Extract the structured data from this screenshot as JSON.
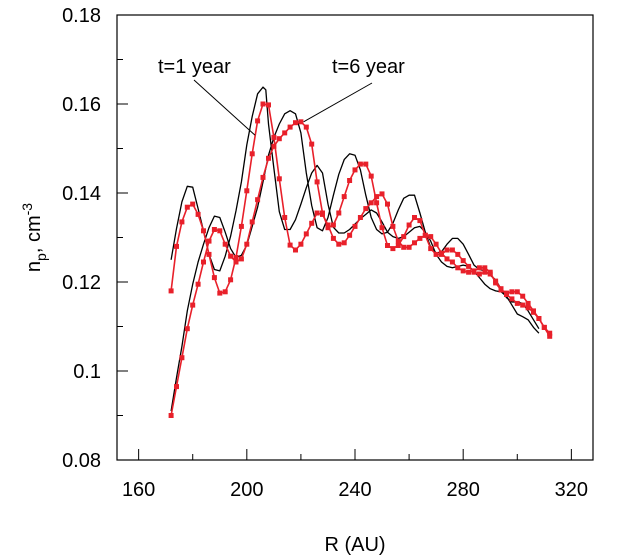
{
  "chart_data": {
    "type": "line",
    "title": "",
    "xlabel": "R (AU)",
    "ylabel": {
      "main": "n",
      "sub": "p",
      "unit": ", cm",
      "sup": "-3"
    },
    "xlim": [
      152,
      328
    ],
    "ylim": [
      0.08,
      0.18
    ],
    "x_ticks": [
      160,
      200,
      240,
      280,
      320
    ],
    "x_tick_labels": [
      "160",
      "200",
      "240",
      "280",
      "320"
    ],
    "y_ticks": [
      0.08,
      0.1,
      0.12,
      0.14,
      0.16,
      0.18
    ],
    "y_tick_labels": [
      "0.08",
      "0.1",
      "0.12",
      "0.14",
      "0.16",
      "0.18"
    ],
    "grid": false,
    "legend": "none",
    "colors": {
      "model": "#000000",
      "data": "#e8202a"
    },
    "annotations": [
      {
        "text": "t=1 year",
        "points_to": [
          203,
          0.153
        ]
      },
      {
        "text": "t=6 year",
        "points_to": [
          221,
          0.156
        ]
      }
    ],
    "series": [
      {
        "color": "#000000",
        "marker": "none",
        "x": [
          172,
          174,
          176,
          178,
          180,
          182,
          184,
          186,
          188,
          190,
          192,
          194,
          196,
          198,
          200,
          202,
          204,
          206,
          207,
          208,
          210,
          212,
          214,
          216,
          218,
          220,
          222,
          224,
          226,
          228,
          230,
          232,
          234,
          236,
          238,
          240,
          242,
          244,
          246,
          248,
          250,
          252,
          254,
          256,
          258,
          260,
          262,
          264,
          266,
          268,
          270,
          272,
          274,
          276,
          278,
          280,
          282,
          284,
          286,
          288,
          290,
          292,
          294,
          296,
          298,
          300,
          302,
          304,
          306,
          308
        ],
        "y": [
          0.125,
          0.132,
          0.138,
          0.1415,
          0.1413,
          0.1365,
          0.1315,
          0.1262,
          0.1228,
          0.1225,
          0.1258,
          0.1303,
          0.136,
          0.1425,
          0.1508,
          0.1572,
          0.1623,
          0.1638,
          0.1632,
          0.1555,
          0.1455,
          0.1358,
          0.1318,
          0.1318,
          0.134,
          0.1375,
          0.1412,
          0.1445,
          0.1462,
          0.1445,
          0.1375,
          0.1323,
          0.131,
          0.131,
          0.1318,
          0.133,
          0.1342,
          0.1352,
          0.1362,
          0.1355,
          0.1335,
          0.1312,
          0.1302,
          0.1298,
          0.1302,
          0.1312,
          0.1322,
          0.1325,
          0.1312,
          0.1292,
          0.1262,
          0.1245,
          0.1235,
          0.1232,
          0.1235,
          0.1238,
          0.1235,
          0.1225,
          0.121,
          0.1195,
          0.1185,
          0.118,
          0.1178,
          0.1168,
          0.1148,
          0.1128,
          0.1122,
          0.1115,
          0.1098,
          0.1085
        ]
      },
      {
        "color": "#000000",
        "marker": "none",
        "x": [
          172,
          174,
          176,
          178,
          180,
          182,
          184,
          186,
          188,
          190,
          192,
          194,
          196,
          198,
          200,
          202,
          204,
          206,
          208,
          210,
          212,
          214,
          216,
          218,
          220,
          222,
          224,
          226,
          228,
          230,
          232,
          234,
          236,
          238,
          240,
          242,
          244,
          246,
          248,
          250,
          252,
          254,
          256,
          258,
          260,
          262,
          264,
          266,
          268,
          270,
          272,
          274,
          276,
          278,
          280,
          282,
          284,
          286,
          288,
          290,
          292,
          294,
          296,
          298,
          300,
          302,
          304,
          306,
          308
        ],
        "y": [
          0.091,
          0.0985,
          0.1055,
          0.1135,
          0.1195,
          0.1245,
          0.1285,
          0.1322,
          0.1348,
          0.1345,
          0.1312,
          0.1275,
          0.1255,
          0.126,
          0.1283,
          0.1325,
          0.1368,
          0.1425,
          0.1485,
          0.1525,
          0.1555,
          0.1578,
          0.1585,
          0.1578,
          0.1535,
          0.1445,
          0.1372,
          0.1322,
          0.1315,
          0.1345,
          0.1395,
          0.1442,
          0.1475,
          0.1488,
          0.1485,
          0.1452,
          0.1395,
          0.1345,
          0.1318,
          0.1308,
          0.1312,
          0.1332,
          0.1362,
          0.1388,
          0.1395,
          0.1395,
          0.1355,
          0.1312,
          0.1278,
          0.1265,
          0.1268,
          0.1285,
          0.1298,
          0.1298,
          0.1285,
          0.1262,
          0.1238,
          0.1228,
          0.1225,
          0.1215,
          0.1205,
          0.1185,
          0.1165,
          0.1155,
          0.1155,
          0.1152,
          0.1135,
          0.1115,
          0.1095
        ]
      },
      {
        "color": "#e8202a",
        "marker": "square",
        "x": [
          172,
          174,
          176,
          178,
          180,
          182,
          184,
          186,
          188,
          190,
          192,
          194,
          196,
          198,
          200,
          202,
          204,
          206,
          208,
          210,
          212,
          214,
          216,
          218,
          220,
          222,
          224,
          226,
          228,
          230,
          232,
          234,
          236,
          238,
          240,
          242,
          244,
          246,
          248,
          250,
          252,
          254,
          256,
          258,
          260,
          262,
          264,
          266,
          268,
          270,
          272,
          274,
          276,
          278,
          280,
          282,
          284,
          286,
          288,
          290,
          292,
          294,
          296,
          298,
          300,
          302,
          304,
          306,
          308,
          310,
          312
        ],
        "y": [
          0.118,
          0.128,
          0.1335,
          0.1368,
          0.1375,
          0.1352,
          0.1315,
          0.1262,
          0.121,
          0.1175,
          0.1178,
          0.1205,
          0.1255,
          0.1325,
          0.1405,
          0.1488,
          0.1562,
          0.16,
          0.1598,
          0.1525,
          0.1432,
          0.1345,
          0.1283,
          0.1272,
          0.1285,
          0.1308,
          0.1332,
          0.1355,
          0.1352,
          0.1328,
          0.1298,
          0.1285,
          0.1288,
          0.1305,
          0.1325,
          0.1345,
          0.1365,
          0.1378,
          0.1392,
          0.1398,
          0.1375,
          0.1325,
          0.1292,
          0.1278,
          0.1278,
          0.1288,
          0.1298,
          0.1305,
          0.1302,
          0.1285,
          0.1265,
          0.1252,
          0.1245,
          0.1232,
          0.1225,
          0.1222,
          0.1225,
          0.1232,
          0.1232,
          0.1222,
          0.1198,
          0.1182,
          0.1175,
          0.1178,
          0.1178,
          0.1168,
          0.1152,
          0.1135,
          0.1118,
          0.1098,
          0.1078
        ]
      },
      {
        "color": "#e8202a",
        "marker": "square",
        "x": [
          172,
          174,
          176,
          178,
          180,
          182,
          184,
          186,
          188,
          190,
          192,
          194,
          196,
          198,
          200,
          202,
          204,
          206,
          208,
          210,
          212,
          214,
          216,
          218,
          220,
          222,
          224,
          226,
          228,
          230,
          232,
          234,
          236,
          238,
          240,
          242,
          244,
          246,
          248,
          250,
          252,
          254,
          256,
          258,
          260,
          262,
          264,
          266,
          268,
          270,
          272,
          274,
          276,
          278,
          280,
          282,
          284,
          286,
          288,
          290,
          292,
          294,
          296,
          298,
          300,
          302,
          304,
          306,
          308,
          310,
          312
        ],
        "y": [
          0.09,
          0.0965,
          0.103,
          0.1095,
          0.1148,
          0.1195,
          0.1245,
          0.1292,
          0.1318,
          0.1315,
          0.1285,
          0.1258,
          0.1245,
          0.1252,
          0.1285,
          0.1335,
          0.1385,
          0.1435,
          0.1478,
          0.1505,
          0.1522,
          0.1535,
          0.1548,
          0.1558,
          0.156,
          0.1548,
          0.151,
          0.1425,
          0.1355,
          0.1322,
          0.1328,
          0.1355,
          0.1392,
          0.1428,
          0.1452,
          0.1465,
          0.1465,
          0.1438,
          0.1378,
          0.1322,
          0.1282,
          0.1275,
          0.1282,
          0.1302,
          0.1328,
          0.1345,
          0.1338,
          0.1305,
          0.1275,
          0.1262,
          0.1262,
          0.1272,
          0.1272,
          0.1262,
          0.1248,
          0.1235,
          0.1222,
          0.1218,
          0.1222,
          0.1218,
          0.1202,
          0.1185,
          0.1172,
          0.1162,
          0.1152,
          0.1148,
          0.1142,
          0.1132,
          0.1118,
          0.1098,
          0.1085
        ]
      }
    ]
  }
}
